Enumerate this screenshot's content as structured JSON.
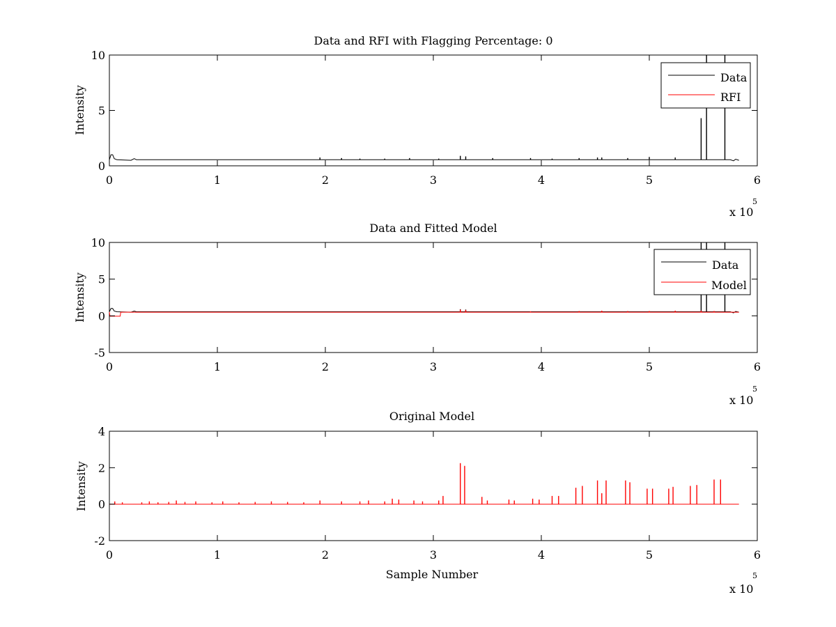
{
  "figure": {
    "background": "#ffffff"
  },
  "chart_data": [
    {
      "type": "line",
      "title": "Data and RFI with Flagging Percentage: 0",
      "xlabel": "",
      "ylabel": "Intensity",
      "xlim": [
        0,
        600000
      ],
      "ylim": [
        0,
        10
      ],
      "xticks": [
        "0",
        "1",
        "2",
        "3",
        "4",
        "5",
        "6"
      ],
      "yticks": [
        "0",
        "5",
        "10"
      ],
      "x_multiplier": {
        "base": "x 10",
        "exponent": "5"
      },
      "legend": {
        "position": "top-right",
        "entries": [
          "Data",
          "RFI"
        ]
      },
      "series": [
        {
          "name": "Data",
          "color": "#000000",
          "baseline": 0.55,
          "points": [
            [
              0,
              0.55
            ],
            [
              1500,
              1.0
            ],
            [
              3000,
              1.0
            ],
            [
              4500,
              0.65
            ],
            [
              7000,
              0.55
            ],
            [
              20000,
              0.5
            ],
            [
              23000,
              0.65
            ],
            [
              25000,
              0.55
            ],
            [
              575000,
              0.55
            ],
            [
              578000,
              0.45
            ],
            [
              580000,
              0.6
            ],
            [
              583000,
              0.5
            ]
          ],
          "spikes": [
            [
              195000,
              0.75
            ],
            [
              215000,
              0.7
            ],
            [
              232000,
              0.65
            ],
            [
              255000,
              0.65
            ],
            [
              278000,
              0.7
            ],
            [
              305000,
              0.65
            ],
            [
              325000,
              0.9
            ],
            [
              330000,
              0.85
            ],
            [
              355000,
              0.7
            ],
            [
              390000,
              0.7
            ],
            [
              410000,
              0.65
            ],
            [
              435000,
              0.7
            ],
            [
              452000,
              0.75
            ],
            [
              456000,
              0.75
            ],
            [
              480000,
              0.7
            ],
            [
              500000,
              0.8
            ],
            [
              524000,
              0.75
            ],
            [
              548000,
              4.3
            ],
            [
              553000,
              10
            ],
            [
              570000,
              10
            ]
          ]
        },
        {
          "name": "RFI",
          "color": "#ff0000",
          "baseline": 0,
          "points": [],
          "spikes": []
        }
      ]
    },
    {
      "type": "line",
      "title": "Data and Fitted Model",
      "xlabel": "",
      "ylabel": "Intensity",
      "xlim": [
        0,
        600000
      ],
      "ylim": [
        -5,
        10
      ],
      "xticks": [
        "0",
        "1",
        "2",
        "3",
        "4",
        "5",
        "6"
      ],
      "yticks": [
        "-5",
        "0",
        "5",
        "10"
      ],
      "x_multiplier": {
        "base": "x 10",
        "exponent": "5"
      },
      "legend": {
        "position": "top-right",
        "entries": [
          "Data",
          "Model"
        ]
      },
      "series": [
        {
          "name": "Data",
          "color": "#000000",
          "baseline": 0.55,
          "points": [
            [
              0,
              0.55
            ],
            [
              1500,
              1.0
            ],
            [
              3000,
              1.0
            ],
            [
              4500,
              0.65
            ],
            [
              7000,
              0.55
            ],
            [
              20000,
              0.5
            ],
            [
              23000,
              0.65
            ],
            [
              25000,
              0.55
            ],
            [
              575000,
              0.55
            ],
            [
              578000,
              0.4
            ],
            [
              580000,
              0.6
            ],
            [
              583000,
              0.5
            ]
          ],
          "spikes": [
            [
              325000,
              0.9
            ],
            [
              330000,
              0.85
            ],
            [
              548000,
              10
            ],
            [
              553000,
              10
            ],
            [
              570000,
              10
            ]
          ]
        },
        {
          "name": "Model",
          "color": "#ff0000",
          "baseline": 0.5,
          "points": [
            [
              0,
              0.5
            ],
            [
              500,
              -0.05
            ],
            [
              10000,
              -0.05
            ],
            [
              10500,
              0.5
            ],
            [
              583000,
              0.5
            ]
          ],
          "spikes": [
            [
              325000,
              0.85
            ],
            [
              330000,
              0.8
            ],
            [
              390000,
              0.6
            ],
            [
              435000,
              0.65
            ],
            [
              456000,
              0.7
            ],
            [
              480000,
              0.65
            ],
            [
              500000,
              0.65
            ],
            [
              524000,
              0.7
            ],
            [
              548000,
              0.7
            ],
            [
              560000,
              0.65
            ]
          ]
        }
      ]
    },
    {
      "type": "line",
      "title": "Original Model",
      "xlabel": "Sample Number",
      "ylabel": "Intensity",
      "xlim": [
        0,
        600000
      ],
      "ylim": [
        -2,
        4
      ],
      "xticks": [
        "0",
        "1",
        "2",
        "3",
        "4",
        "5",
        "6"
      ],
      "yticks": [
        "-2",
        "0",
        "2",
        "4"
      ],
      "x_multiplier": {
        "base": "x 10",
        "exponent": "5"
      },
      "legend": null,
      "series": [
        {
          "name": "Model",
          "color": "#ff0000",
          "baseline": 0,
          "points": [
            [
              0,
              0
            ],
            [
              583000,
              0
            ]
          ],
          "spikes": [
            [
              5000,
              0.15
            ],
            [
              12000,
              0.1
            ],
            [
              30000,
              0.1
            ],
            [
              37000,
              0.15
            ],
            [
              45000,
              0.1
            ],
            [
              55000,
              0.12
            ],
            [
              62000,
              0.2
            ],
            [
              70000,
              0.12
            ],
            [
              80000,
              0.15
            ],
            [
              95000,
              0.1
            ],
            [
              105000,
              0.15
            ],
            [
              120000,
              0.1
            ],
            [
              135000,
              0.12
            ],
            [
              150000,
              0.15
            ],
            [
              165000,
              0.12
            ],
            [
              180000,
              0.1
            ],
            [
              195000,
              0.2
            ],
            [
              215000,
              0.15
            ],
            [
              232000,
              0.15
            ],
            [
              240000,
              0.2
            ],
            [
              255000,
              0.15
            ],
            [
              262000,
              0.3
            ],
            [
              268000,
              0.25
            ],
            [
              282000,
              0.2
            ],
            [
              290000,
              0.15
            ],
            [
              305000,
              0.2
            ],
            [
              309000,
              0.45
            ],
            [
              325000,
              2.25
            ],
            [
              329000,
              2.1
            ],
            [
              345000,
              0.4
            ],
            [
              350000,
              0.2
            ],
            [
              370000,
              0.25
            ],
            [
              375000,
              0.2
            ],
            [
              392000,
              0.3
            ],
            [
              398000,
              0.25
            ],
            [
              410000,
              0.45
            ],
            [
              416000,
              0.45
            ],
            [
              432000,
              0.9
            ],
            [
              438000,
              1.0
            ],
            [
              452000,
              1.3
            ],
            [
              456000,
              0.6
            ],
            [
              460000,
              1.3
            ],
            [
              478000,
              1.3
            ],
            [
              482000,
              1.2
            ],
            [
              498000,
              0.85
            ],
            [
              503000,
              0.85
            ],
            [
              518000,
              0.85
            ],
            [
              522000,
              0.95
            ],
            [
              538000,
              1.0
            ],
            [
              544000,
              1.05
            ],
            [
              560000,
              1.35
            ],
            [
              566000,
              1.35
            ]
          ]
        }
      ]
    }
  ]
}
